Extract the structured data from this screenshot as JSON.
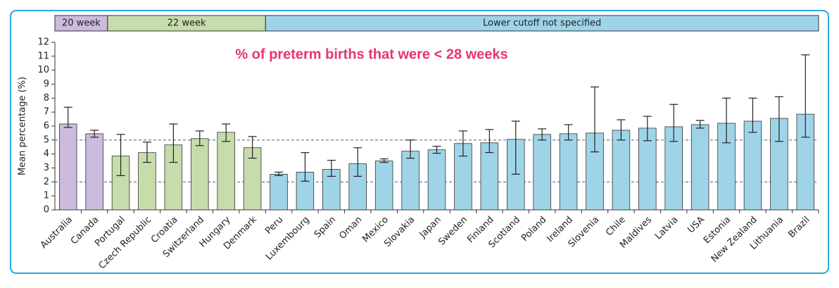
{
  "chart_data": {
    "type": "bar",
    "title": "% of preterm births that were < 28 weeks",
    "y_label": "Mean percentage (%)",
    "categories": [
      "Australia",
      "Canada",
      "Portugal",
      "Czech Republic",
      "Croatia",
      "Switzerland",
      "Hungary",
      "Denmark",
      "Peru",
      "Luxembourg",
      "Spain",
      "Oman",
      "Mexico",
      "Slovakia",
      "Japan",
      "Sweden",
      "Finland",
      "Scotland",
      "Poland",
      "Ireland",
      "Slovenia",
      "Chile",
      "Maldives",
      "Latvia",
      "USA",
      "Estonia",
      "New Zealand",
      "Lithuania",
      "Brazil"
    ],
    "values": [
      6.15,
      5.45,
      3.85,
      4.1,
      4.65,
      5.1,
      5.55,
      4.45,
      2.55,
      2.7,
      2.9,
      3.3,
      3.5,
      4.2,
      4.3,
      4.75,
      4.8,
      5.05,
      5.4,
      5.45,
      5.5,
      5.7,
      5.85,
      5.95,
      6.1,
      6.2,
      6.35,
      6.55,
      6.85
    ],
    "error_low": [
      5.9,
      5.2,
      2.45,
      3.4,
      3.4,
      4.6,
      4.9,
      3.7,
      2.45,
      2.05,
      2.4,
      2.4,
      3.4,
      3.7,
      4.05,
      3.85,
      4.1,
      2.55,
      5.0,
      5.0,
      4.15,
      5.0,
      4.95,
      4.9,
      5.85,
      4.8,
      5.55,
      4.9,
      5.2
    ],
    "error_high": [
      7.35,
      5.7,
      5.4,
      4.85,
      6.15,
      5.65,
      6.15,
      5.25,
      2.7,
      4.1,
      3.55,
      4.45,
      3.65,
      5.0,
      4.55,
      5.65,
      5.75,
      6.35,
      5.8,
      6.1,
      8.8,
      6.45,
      6.7,
      7.55,
      6.4,
      8.0,
      8.0,
      8.1,
      11.1
    ],
    "groups": [
      {
        "label": "20 week",
        "color": "#cbbbdc",
        "size": 2
      },
      {
        "label": "22 week",
        "color": "#c6dcab",
        "size": 6
      },
      {
        "label": "Lower cutoff not specified",
        "color": "#9fd4e8",
        "size": 21
      }
    ],
    "hlines": [
      2,
      5
    ],
    "ylim": [
      0,
      12
    ],
    "yticks": [
      0,
      1,
      2,
      3,
      4,
      5,
      6,
      7,
      8,
      9,
      10,
      11,
      12
    ]
  }
}
